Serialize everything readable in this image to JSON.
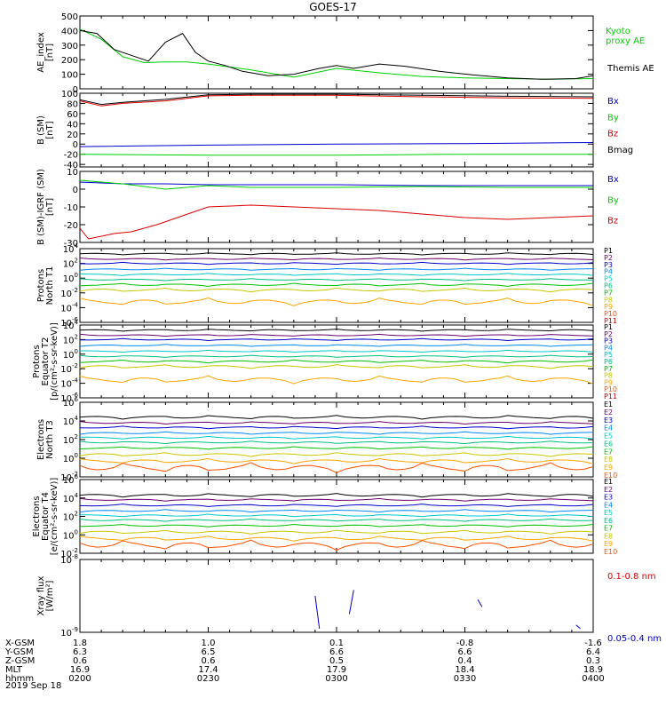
{
  "title": "GOES-17",
  "date_label": "2019 Sep 18",
  "footer": {
    "rows": [
      {
        "label": "X-GSM",
        "values": [
          "1.8",
          "1.0",
          "0.1",
          "-0.8",
          "-1.6"
        ]
      },
      {
        "label": "Y-GSM",
        "values": [
          "6.3",
          "6.5",
          "6.6",
          "6.6",
          "6.4"
        ]
      },
      {
        "label": "Z-GSM",
        "values": [
          "0.6",
          "0.6",
          "0.5",
          "0.4",
          "0.3"
        ]
      },
      {
        "label": "MLT",
        "values": [
          "16.9",
          "17.4",
          "17.9",
          "18.4",
          "18.9"
        ]
      },
      {
        "label": "hhmm",
        "values": [
          "0200",
          "0230",
          "0300",
          "0330",
          "0400"
        ]
      }
    ]
  },
  "colors": {
    "black": "#000000",
    "green": "#00d000",
    "red": "#dd0000",
    "blue": "#0000cc",
    "p_colors": [
      "#000000",
      "#6a006a",
      "#0000cc",
      "#0088ff",
      "#00c8c8",
      "#00c080",
      "#00c000",
      "#c8c800",
      "#ffa500",
      "#ff5000",
      "#cc0000"
    ],
    "e_colors": [
      "#000000",
      "#6a006a",
      "#0000cc",
      "#0088ff",
      "#00c8c8",
      "#00c080",
      "#00c000",
      "#c8c800",
      "#ffa500",
      "#ff5000",
      "#cc0000"
    ]
  },
  "chart_data": [
    {
      "id": "ae",
      "type": "line",
      "ylabel": [
        "AE_index",
        "[nT]"
      ],
      "ylim": [
        0,
        500
      ],
      "yticks": [
        "0",
        "100",
        "200",
        "300",
        "400",
        "500"
      ],
      "series": [
        {
          "name": "Kyoto proxy AE",
          "name_lines": [
            "Kyoto",
            "proxy AE"
          ],
          "color": "green",
          "x": [
            0,
            5,
            10,
            15,
            20,
            25,
            30,
            40,
            50,
            60,
            70,
            80,
            90,
            100,
            110,
            120
          ],
          "y": [
            410,
            340,
            220,
            180,
            185,
            185,
            170,
            130,
            80,
            140,
            110,
            85,
            75,
            70,
            65,
            70
          ]
        },
        {
          "name": "Themis AE",
          "name_lines": [
            "Themis AE"
          ],
          "color": "black",
          "x": [
            0,
            4,
            8,
            12,
            16,
            20,
            24,
            27,
            30,
            34,
            38,
            44,
            50,
            56,
            60,
            64,
            70,
            76,
            84,
            92,
            100,
            108,
            116,
            120
          ],
          "y": [
            400,
            380,
            270,
            230,
            190,
            320,
            380,
            250,
            190,
            160,
            120,
            90,
            100,
            140,
            160,
            140,
            170,
            155,
            120,
            95,
            75,
            65,
            70,
            90
          ]
        }
      ]
    },
    {
      "id": "bsm",
      "type": "line",
      "ylabel": [
        "B (SM)",
        "[nT]"
      ],
      "ylim": [
        -45,
        100
      ],
      "yticks": [
        "100",
        "80",
        "60",
        "40",
        "20",
        "0",
        "-20",
        "-40"
      ],
      "series": [
        {
          "name": "Bx",
          "color": "blue",
          "x": [
            0,
            30,
            60,
            90,
            120
          ],
          "y": [
            -5,
            -2,
            0,
            1,
            3
          ]
        },
        {
          "name": "By",
          "color": "green",
          "x": [
            0,
            30,
            60,
            90,
            120
          ],
          "y": [
            -20,
            -22,
            -22,
            -20,
            -20
          ]
        },
        {
          "name": "Bz",
          "color": "red",
          "x": [
            0,
            5,
            10,
            20,
            30,
            40,
            60,
            80,
            100,
            120
          ],
          "y": [
            85,
            75,
            80,
            85,
            95,
            96,
            96,
            93,
            91,
            90
          ]
        },
        {
          "name": "Bmag",
          "color": "black",
          "x": [
            0,
            5,
            10,
            20,
            30,
            40,
            60,
            80,
            100,
            120
          ],
          "y": [
            87,
            78,
            82,
            88,
            97,
            98,
            98,
            96,
            94,
            93
          ]
        }
      ]
    },
    {
      "id": "bigrf",
      "type": "line",
      "ylabel": [
        "B (SM)-IGRF (SM)",
        "[nT]"
      ],
      "ylim": [
        -30,
        10
      ],
      "yticks": [
        "10",
        "0",
        "-10",
        "-20",
        "-30"
      ],
      "series": [
        {
          "name": "Bx",
          "color": "blue",
          "x": [
            0,
            10,
            20,
            30,
            40,
            60,
            80,
            100,
            120
          ],
          "y": [
            4,
            3,
            3,
            2.5,
            2.5,
            2.5,
            2,
            2,
            2
          ]
        },
        {
          "name": "By",
          "color": "green",
          "x": [
            0,
            5,
            10,
            20,
            30,
            40,
            60,
            80,
            100,
            120
          ],
          "y": [
            5,
            4,
            3,
            0,
            2,
            1,
            1,
            1.5,
            1,
            1
          ]
        },
        {
          "name": "Bz",
          "color": "red",
          "x": [
            0,
            2,
            4,
            8,
            12,
            18,
            24,
            30,
            40,
            50,
            60,
            70,
            80,
            90,
            100,
            110,
            120
          ],
          "y": [
            -22,
            -28,
            -27,
            -25,
            -24,
            -20,
            -15,
            -10,
            -9,
            -10,
            -11,
            -12,
            -14,
            -16,
            -17,
            -16,
            -15
          ]
        }
      ]
    },
    {
      "id": "pnorth",
      "type": "line",
      "ylabel": [
        "Protons",
        "North T1"
      ],
      "log": true,
      "ylim": [
        -6,
        4
      ],
      "yticks": [
        "10^4",
        "10^2",
        "10^0",
        "10^-2",
        "10^-4",
        "10^-6"
      ],
      "series_names": [
        "P1",
        "P2",
        "P3",
        "P4",
        "P5",
        "P6",
        "P7",
        "P8",
        "P9",
        "P10",
        "P11"
      ],
      "levels": [
        3.3,
        2.6,
        2.0,
        1.2,
        0.5,
        -0.2,
        -0.9,
        -1.6,
        -3.2,
        -9,
        -9
      ],
      "wiggle": [
        0.1,
        0.1,
        0.1,
        0.1,
        0.1,
        0.1,
        0.15,
        0.2,
        0.4,
        0,
        0
      ]
    },
    {
      "id": "pequator",
      "type": "line",
      "ylabel": [
        "Protons",
        "Equator T2",
        "[p/(cm²-s-sr-keV)]"
      ],
      "log": true,
      "ylim": [
        -6,
        4
      ],
      "yticks": [
        "10^4",
        "10^2",
        "10^0",
        "10^-2",
        "10^-4",
        "10^-6"
      ],
      "series_names": [
        "P1",
        "P2",
        "P3",
        "P4",
        "P5",
        "P6",
        "P7",
        "P8",
        "P9",
        "P10",
        "P11"
      ],
      "levels": [
        3.3,
        2.6,
        2.0,
        1.2,
        0.4,
        -0.3,
        -1.0,
        -1.7,
        -3.5,
        -9,
        -9
      ],
      "wiggle": [
        0.1,
        0.1,
        0.1,
        0.1,
        0.1,
        0.1,
        0.15,
        0.2,
        0.4,
        0,
        0
      ]
    },
    {
      "id": "enorth",
      "type": "line",
      "ylabel": [
        "Electrons",
        "North T3"
      ],
      "log": true,
      "ylim": [
        -2,
        6
      ],
      "yticks": [
        "10^6",
        "10^4",
        "10^2",
        "10^0",
        "10^-2"
      ],
      "series_names": [
        "E1",
        "E2",
        "E3",
        "E4",
        "E5",
        "E6",
        "E7",
        "E8",
        "E9",
        "E10"
      ],
      "levels": [
        4.4,
        3.8,
        3.3,
        2.7,
        2.2,
        1.7,
        1.1,
        0.4,
        -0.3,
        -1.0
      ],
      "wiggle": [
        0.15,
        0.1,
        0.1,
        0.1,
        0.1,
        0.1,
        0.1,
        0.15,
        0.2,
        0.4
      ]
    },
    {
      "id": "eequator",
      "type": "line",
      "ylabel": [
        "Electrons",
        "Equator T4",
        "[e/(cm²-s-sr-keV)]"
      ],
      "log": true,
      "ylim": [
        -2,
        6
      ],
      "yticks": [
        "10^6",
        "10^4",
        "10^2",
        "10^0",
        "10^-2"
      ],
      "series_names": [
        "E1",
        "E2",
        "E3",
        "E4",
        "E5",
        "E6",
        "E7",
        "E8",
        "E9",
        "E10"
      ],
      "levels": [
        4.3,
        3.8,
        3.2,
        2.6,
        2.1,
        1.6,
        1.0,
        0.3,
        -0.4,
        -1.1
      ],
      "wiggle": [
        0.15,
        0.1,
        0.1,
        0.1,
        0.1,
        0.1,
        0.1,
        0.15,
        0.2,
        0.4
      ]
    },
    {
      "id": "xray",
      "type": "line",
      "ylabel": [
        "Xray flux",
        "[W/m²]"
      ],
      "log": true,
      "ylim": [
        -9,
        -8
      ],
      "yticks": [
        "10^-8",
        "10^-9"
      ],
      "series": [
        {
          "name": "0.1-0.8 nm",
          "color": "red",
          "segments": [
            [
              [
                56,
                -9.0
              ],
              [
                56.5,
                -9.1
              ]
            ]
          ]
        },
        {
          "name": "0.05-0.4 nm",
          "color": "blue",
          "segments": [
            [
              [
                55,
                -8.5
              ],
              [
                56,
                -8.95
              ]
            ],
            [
              [
                63,
                -8.75
              ],
              [
                64,
                -8.42
              ]
            ],
            [
              [
                93,
                -8.55
              ],
              [
                94,
                -8.65
              ]
            ],
            [
              [
                116,
                -8.9
              ],
              [
                117,
                -8.95
              ]
            ]
          ]
        }
      ]
    }
  ]
}
